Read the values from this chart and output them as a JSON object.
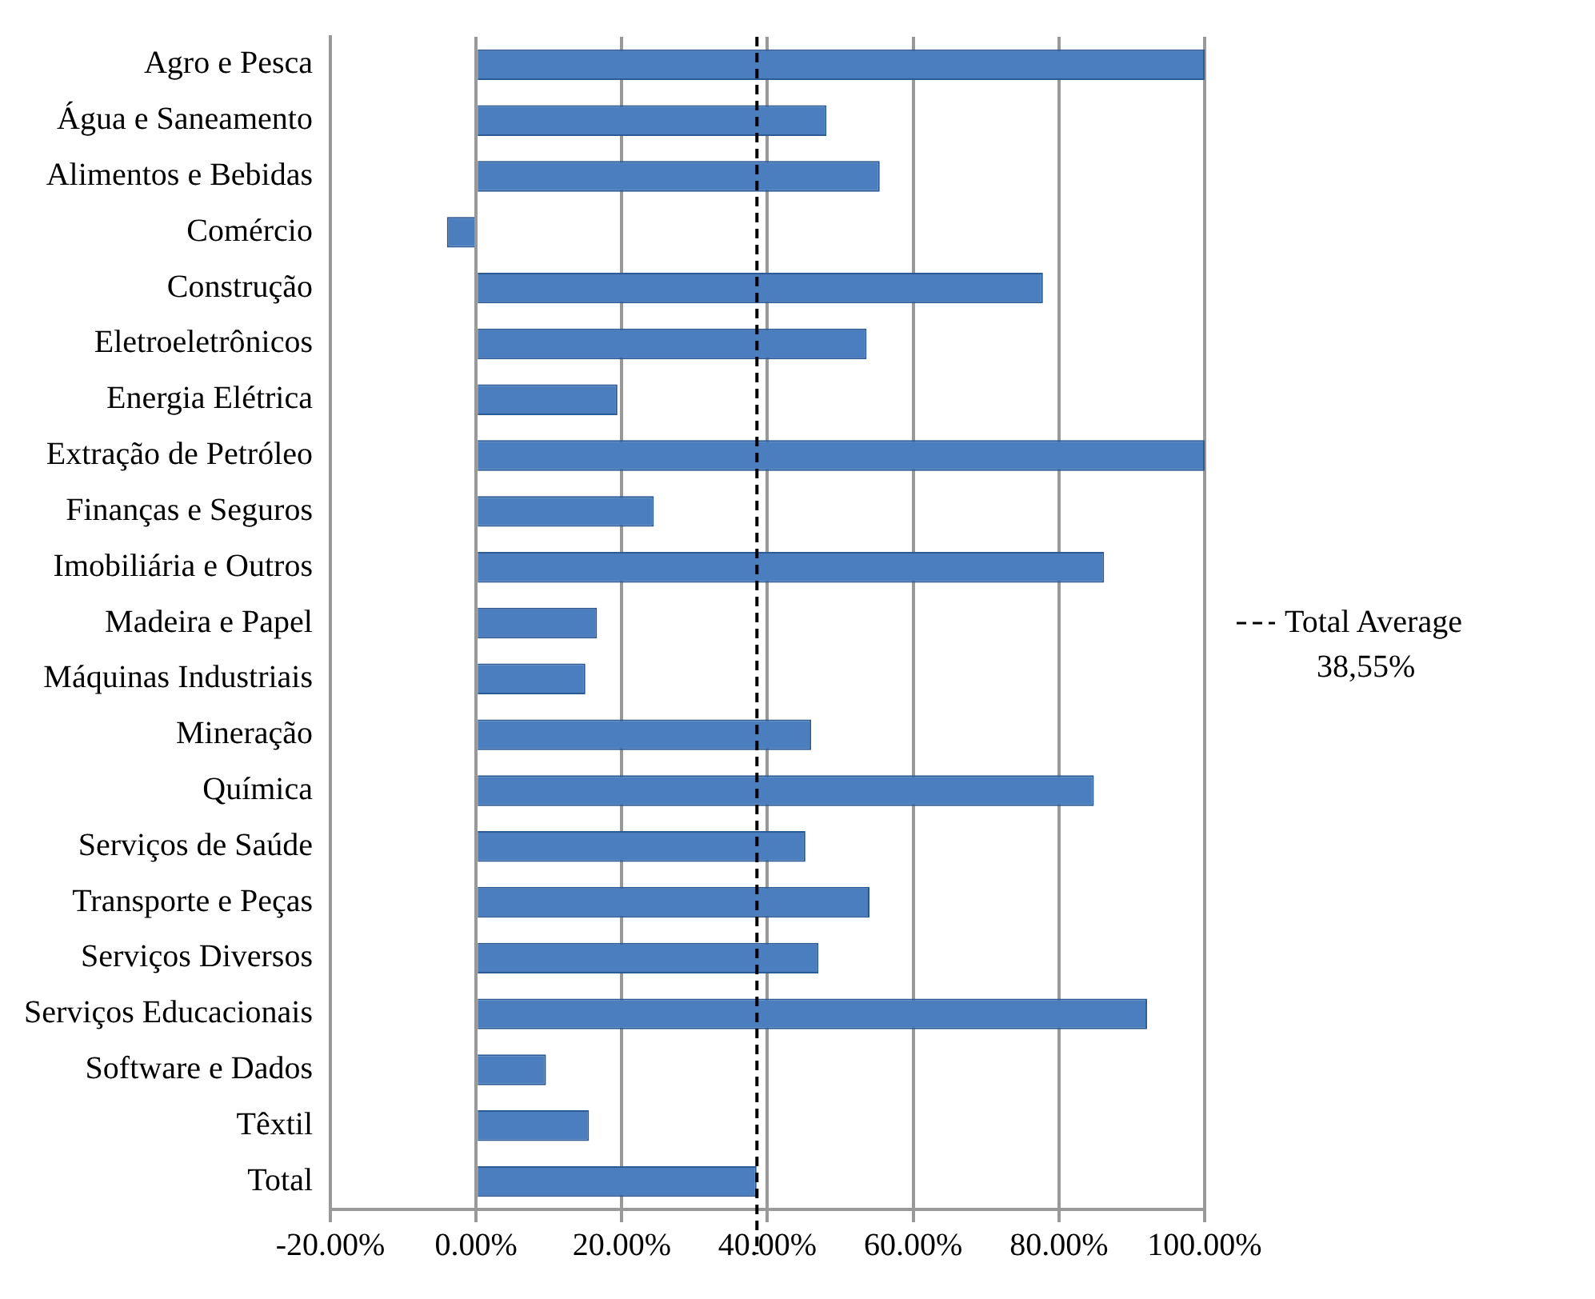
{
  "chart_data": {
    "type": "bar",
    "orientation": "horizontal",
    "categories": [
      "Agro e Pesca",
      "Água e Saneamento",
      "Alimentos e Bebidas",
      "Comércio",
      "Construção",
      "Eletroeletrônicos",
      "Energia Elétrica",
      "Extração de Petróleo",
      "Finanças e Seguros",
      "Imobiliária e Outros",
      "Madeira e Papel",
      "Máquinas Industriais",
      "Mineração",
      "Química",
      "Serviços de Saúde",
      "Transporte e Peças",
      "Serviços Diversos",
      "Serviços Educacionais",
      "Software e Dados",
      "Têxtil",
      "Total"
    ],
    "values": [
      100,
      48.1,
      55.4,
      -4,
      77.8,
      53.6,
      19.4,
      100,
      24.4,
      86.2,
      16.6,
      15,
      46,
      84.8,
      45.2,
      54,
      47,
      92.1,
      9.6,
      15.5,
      38.5
    ],
    "color": "#4a7ebf",
    "xlim": [
      -20,
      100
    ],
    "xticks": [
      {
        "value": -20,
        "label": "-20.00%"
      },
      {
        "value": 0,
        "label": "0.00%"
      },
      {
        "value": 20,
        "label": "20.00%"
      },
      {
        "value": 40,
        "label": "40.00%"
      },
      {
        "value": 60,
        "label": "60.00%"
      },
      {
        "value": 80,
        "label": "80.00%"
      },
      {
        "value": 100,
        "label": "100.00%"
      }
    ],
    "grid": "x",
    "ref_lines": [
      {
        "axis": "x",
        "value": 38.55,
        "label": "Total Average 38,55%",
        "color": "#000000",
        "line_style": "dashed"
      }
    ]
  }
}
